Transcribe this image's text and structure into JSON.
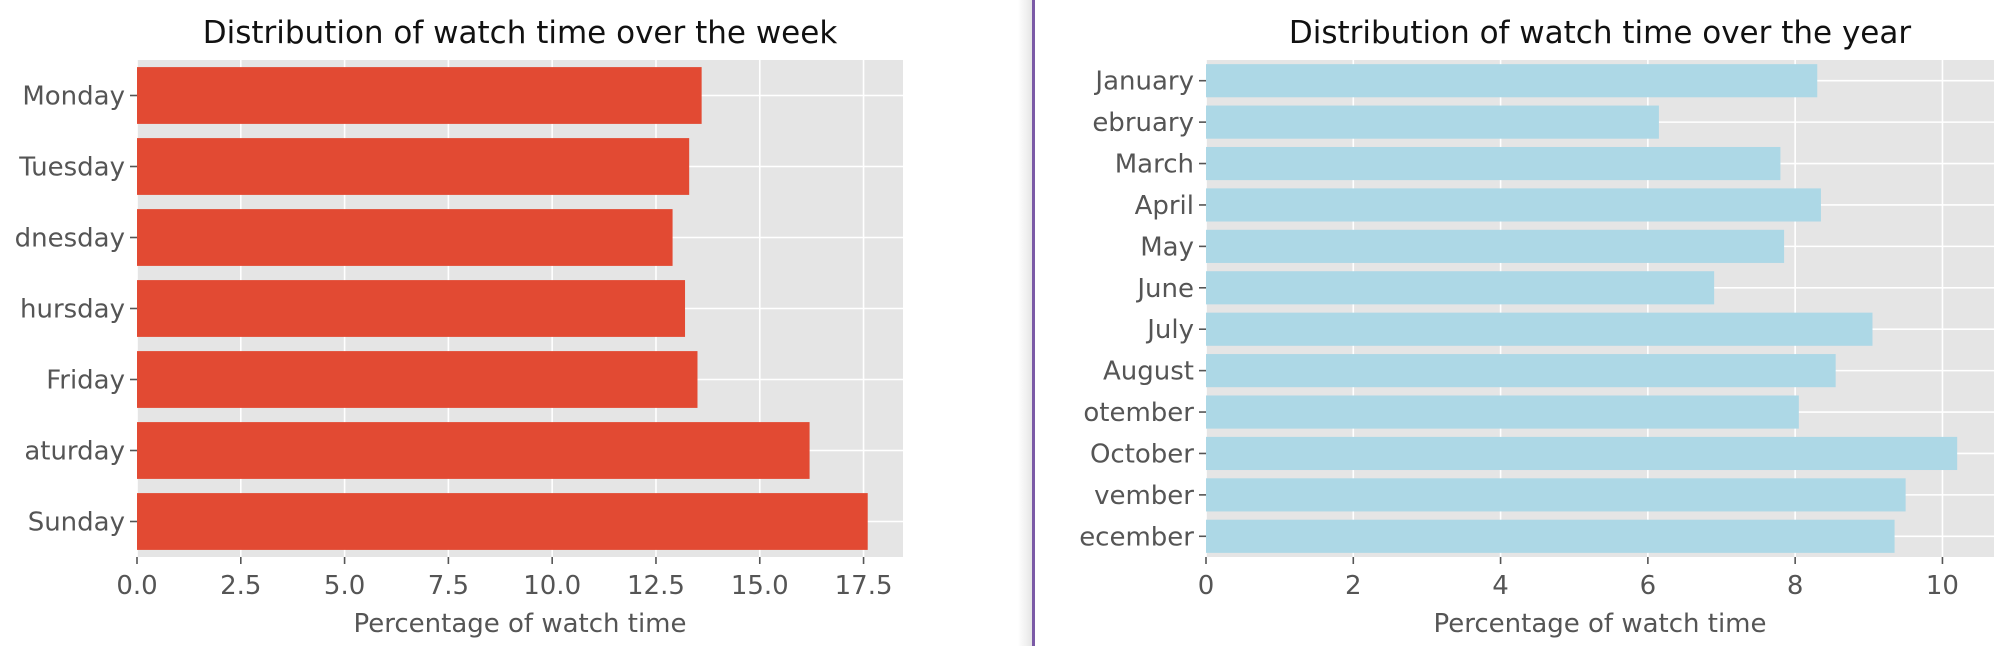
{
  "chart_data": [
    {
      "type": "bar",
      "orientation": "horizontal",
      "title": "Distribution of watch time over the week",
      "xlabel": "Percentage of watch time",
      "ylabel": "",
      "categories": [
        "Monday",
        "Tuesday",
        "Wednesday",
        "Thursday",
        "Friday",
        "Saturday",
        "Sunday"
      ],
      "category_labels_visible": [
        "Monday",
        "Tuesday",
        "dnesday",
        "hursday",
        "Friday",
        "aturday",
        "Sunday"
      ],
      "values": [
        13.6,
        13.3,
        12.9,
        13.2,
        13.5,
        16.2,
        17.6
      ],
      "xlim": [
        0,
        18.45
      ],
      "xticks": [
        0,
        2.5,
        5,
        7.5,
        10,
        12.5,
        15,
        17.5
      ],
      "xtick_labels": [
        "0.0",
        "2.5",
        "5.0",
        "7.5",
        "10.0",
        "12.5",
        "15.0",
        "17.5"
      ],
      "color": "#e24a33",
      "grid": true
    },
    {
      "type": "bar",
      "orientation": "horizontal",
      "title": "Distribution of watch time over the year",
      "xlabel": "Percentage of watch time",
      "ylabel": "",
      "categories": [
        "January",
        "February",
        "March",
        "April",
        "May",
        "June",
        "July",
        "August",
        "September",
        "October",
        "November",
        "December"
      ],
      "category_labels_visible": [
        "January",
        "ebruary",
        "March",
        "April",
        "May",
        "June",
        "July",
        "August",
        "otember",
        "October",
        "vember",
        "ecember"
      ],
      "values": [
        8.3,
        6.15,
        7.8,
        8.35,
        7.85,
        6.9,
        9.05,
        8.55,
        8.05,
        10.2,
        9.5,
        9.35
      ],
      "xlim": [
        0,
        10.7
      ],
      "xticks": [
        0,
        2,
        4,
        6,
        8,
        10
      ],
      "xtick_labels": [
        "0",
        "2",
        "4",
        "6",
        "8",
        "10"
      ],
      "color": "#add8e6",
      "grid": true
    }
  ],
  "colors": {
    "plot_background": "#e5e5e5",
    "grid": "#ffffff",
    "text": "#555555",
    "title": "#111111",
    "divider": "#7b5aa6"
  }
}
